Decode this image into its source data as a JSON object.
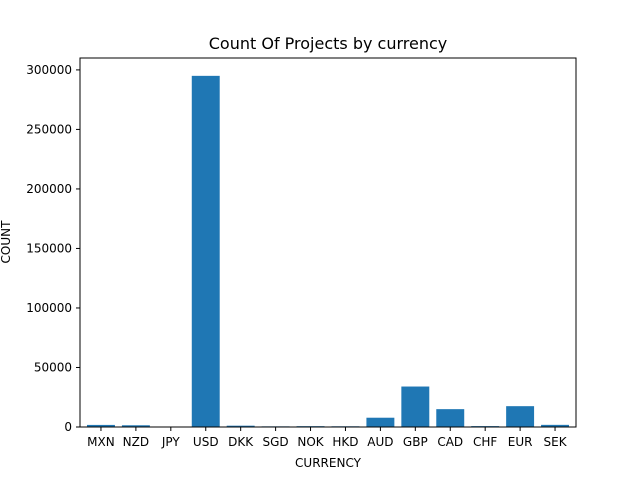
{
  "chart_data": {
    "type": "bar",
    "title": "Count Of Projects by currency",
    "xlabel": "CURRENCY",
    "ylabel": "COUNT",
    "categories": [
      "MXN",
      "NZD",
      "JPY",
      "USD",
      "DKK",
      "SGD",
      "NOK",
      "HKD",
      "AUD",
      "GBP",
      "CAD",
      "CHF",
      "EUR",
      "SEK"
    ],
    "values": [
      1750,
      1450,
      40,
      295000,
      1100,
      550,
      700,
      600,
      7800,
      34000,
      15000,
      750,
      17500,
      1800
    ],
    "ylim": [
      0,
      310000
    ],
    "yticks": [
      0,
      50000,
      100000,
      150000,
      200000,
      250000,
      300000
    ],
    "ytick_labels": [
      "0",
      "50000",
      "100000",
      "150000",
      "200000",
      "250000",
      "300000"
    ],
    "bar_color": "#1f77b4",
    "grid": false,
    "legend": "none"
  }
}
